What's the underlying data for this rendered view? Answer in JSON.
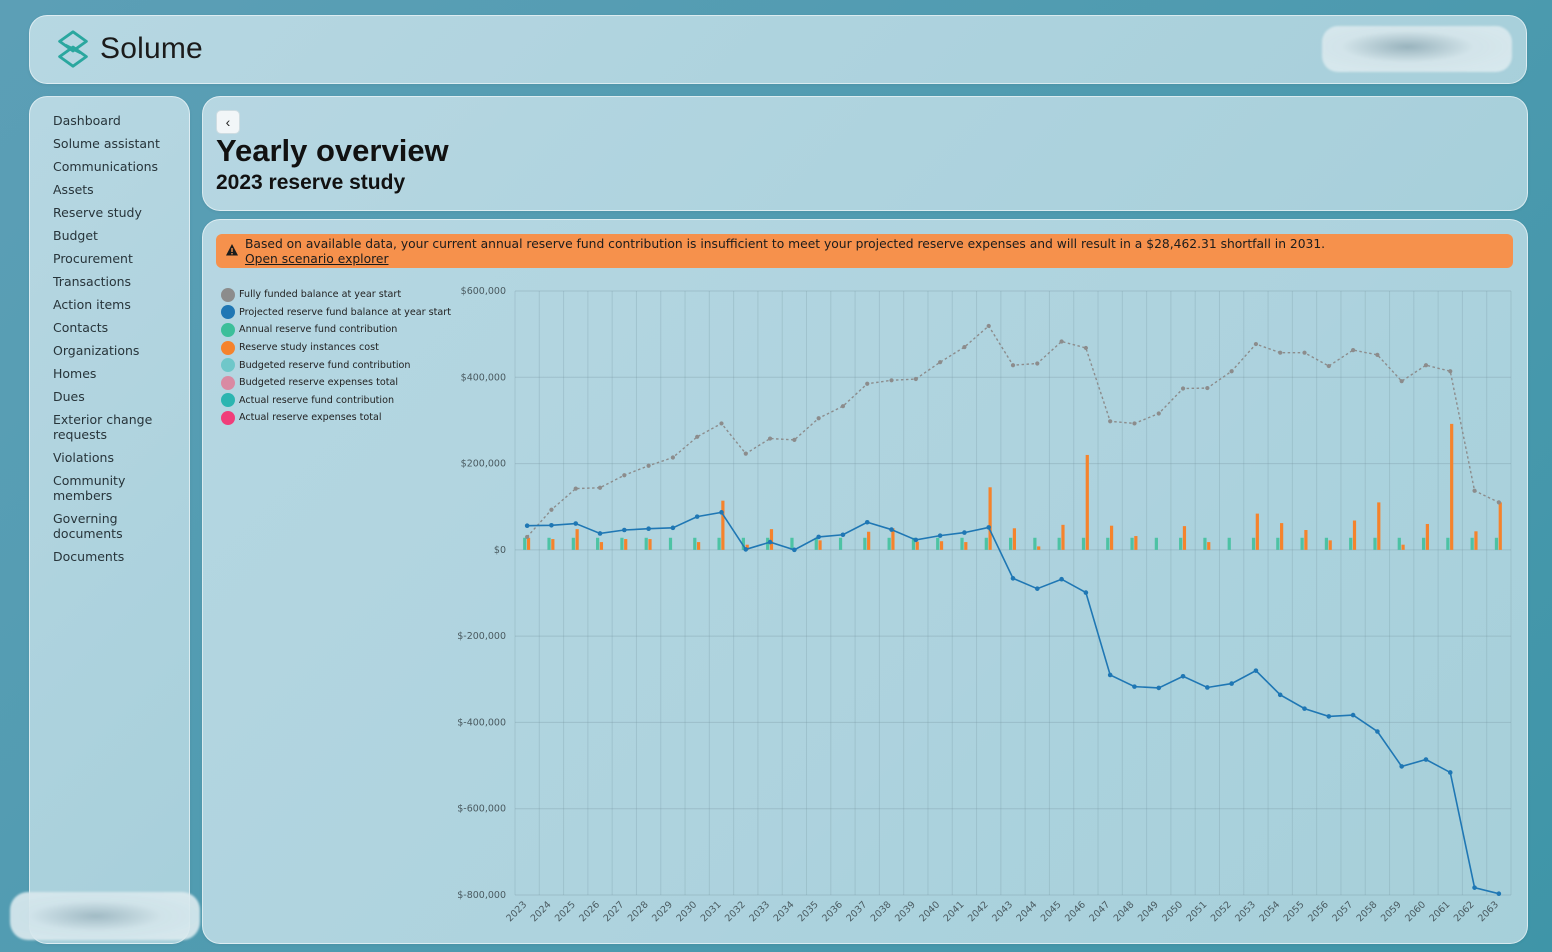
{
  "app": {
    "brand": "Solume"
  },
  "sidebar": {
    "items": [
      "Dashboard",
      "Solume assistant",
      "Communications",
      "Assets",
      "Reserve study",
      "Budget",
      "Procurement",
      "Transactions",
      "Action items",
      "Contacts",
      "Organizations",
      "Homes",
      "Dues",
      "Exterior change requests",
      "Violations",
      "Community members",
      "Governing documents",
      "Documents"
    ]
  },
  "header": {
    "back_label": "‹",
    "title": "Yearly overview",
    "subtitle": "2023 reserve study"
  },
  "alert": {
    "message": "Based on available data, your current annual reserve fund contribution is insufficient to meet your projected reserve expenses and will result in a $28,462.31 shortfall in 2031.",
    "link": "Open scenario explorer",
    "color": "#f6914c"
  },
  "chart_data": {
    "type": "bar+line",
    "legend": [
      {
        "name": "Fully funded balance at year start",
        "color": "#8c8c8c"
      },
      {
        "name": "Projected reserve fund balance at year start",
        "color": "#1f77b4"
      },
      {
        "name": "Annual reserve fund contribution",
        "color": "#3cbf9a"
      },
      {
        "name": "Reserve study instances cost",
        "color": "#f5832c"
      },
      {
        "name": "Budgeted reserve fund contribution",
        "color": "#6fc7c9"
      },
      {
        "name": "Budgeted reserve expenses total",
        "color": "#d98aa3"
      },
      {
        "name": "Actual reserve fund contribution",
        "color": "#2bb5b0"
      },
      {
        "name": "Actual reserve expenses total",
        "color": "#f03e7a"
      }
    ],
    "ylim": [
      -800000,
      600000
    ],
    "y_ticks": [
      {
        "value": 600000,
        "label": "$600,000"
      },
      {
        "value": 400000,
        "label": "$400,000"
      },
      {
        "value": 200000,
        "label": "$200,000"
      },
      {
        "value": 0,
        "label": "$0"
      },
      {
        "value": -200000,
        "label": "$-200,000"
      },
      {
        "value": -400000,
        "label": "$-400,000"
      },
      {
        "value": -600000,
        "label": "$-600,000"
      },
      {
        "value": -800000,
        "label": "$-800,000"
      }
    ],
    "categories": [
      "2023",
      "2024",
      "2025",
      "2026",
      "2027",
      "2028",
      "2029",
      "2030",
      "2031",
      "2032",
      "2033",
      "2034",
      "2035",
      "2036",
      "2037",
      "2038",
      "2039",
      "2040",
      "2041",
      "2042",
      "2043",
      "2044",
      "2045",
      "2046",
      "2047",
      "2048",
      "2049",
      "2050",
      "2051",
      "2052",
      "2053",
      "2054",
      "2055",
      "2056",
      "2057",
      "2058",
      "2059",
      "2060",
      "2061",
      "2062",
      "2063"
    ],
    "series": [
      {
        "name": "Fully funded balance at year start",
        "kind": "line-dotted",
        "color": "#8c8c8c",
        "values": [
          30000,
          93000,
          142000,
          144000,
          173000,
          195000,
          214000,
          262000,
          293000,
          223000,
          258000,
          255000,
          305000,
          333000,
          385000,
          393000,
          396000,
          435000,
          470000,
          519000,
          428000,
          432000,
          483000,
          468000,
          298000,
          293000,
          316000,
          374000,
          375000,
          414000,
          477000,
          457000,
          457000,
          426000,
          463000,
          452000,
          391000,
          428000,
          414000,
          137000,
          110000
        ]
      },
      {
        "name": "Projected reserve fund balance at year start",
        "kind": "line",
        "color": "#1f77b4",
        "values": [
          56000,
          57000,
          61000,
          38000,
          46000,
          49000,
          51000,
          77000,
          87000,
          1000,
          18000,
          0,
          30000,
          35000,
          64000,
          47000,
          23000,
          33000,
          40000,
          52000,
          -66000,
          -90000,
          -68000,
          -99000,
          -290000,
          -317000,
          -320000,
          -293000,
          -319000,
          -310000,
          -280000,
          -336000,
          -368000,
          -386000,
          -383000,
          -421000,
          -502000,
          -486000,
          -516000,
          -783000,
          -797000
        ]
      },
      {
        "name": "Annual reserve fund contribution",
        "kind": "bar",
        "color": "#3cbf9a",
        "values": [
          28000,
          28000,
          28000,
          28000,
          28000,
          28000,
          28000,
          28000,
          28000,
          28000,
          28000,
          28000,
          28000,
          28000,
          28000,
          28000,
          28000,
          28000,
          28000,
          28000,
          28000,
          28000,
          28000,
          28000,
          28000,
          28000,
          28000,
          28000,
          28000,
          28000,
          28000,
          28000,
          28000,
          28000,
          28000,
          28000,
          28000,
          28000,
          28000,
          28000,
          28000
        ]
      },
      {
        "name": "Reserve study instances cost",
        "kind": "bar",
        "color": "#f5832c",
        "values": [
          28000,
          25000,
          48000,
          18000,
          25000,
          25000,
          0,
          18000,
          114000,
          12000,
          48000,
          0,
          22000,
          0,
          42000,
          50000,
          19000,
          20000,
          18000,
          145000,
          50000,
          8000,
          58000,
          220000,
          56000,
          32000,
          0,
          55000,
          18000,
          0,
          84000,
          62000,
          46000,
          22000,
          68000,
          110000,
          12000,
          60000,
          292000,
          43000,
          110000
        ]
      }
    ],
    "xlabel": "",
    "ylabel": ""
  }
}
